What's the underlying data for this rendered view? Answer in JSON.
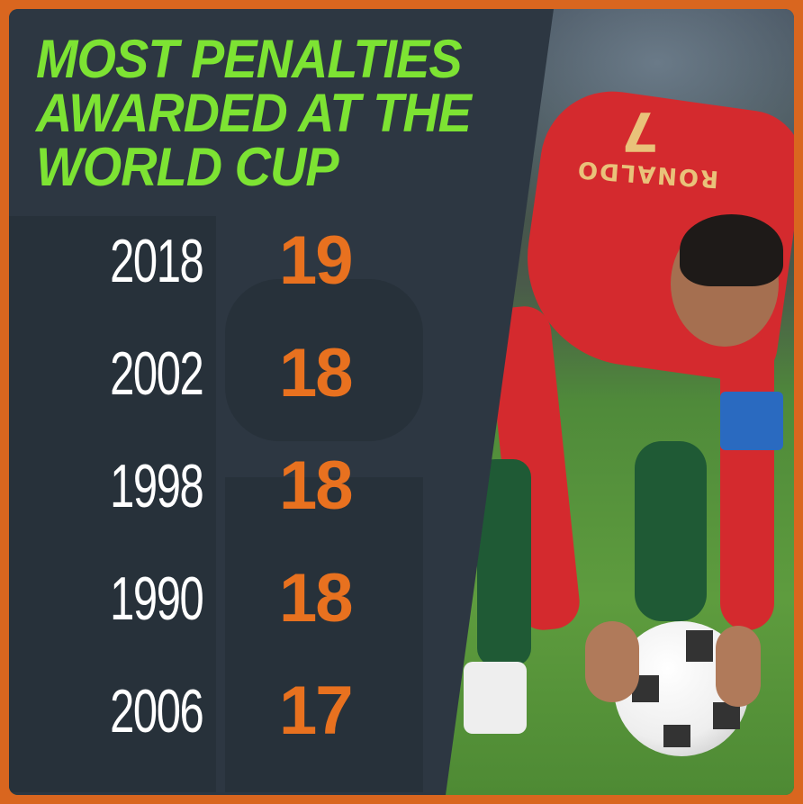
{
  "chart_data": {
    "type": "table",
    "title": "MOST PENALTIES AWARDED AT THE WORLD CUP",
    "title_lines": [
      "MOST PENALTIES",
      "AWARDED AT THE",
      "WORLD CUP"
    ],
    "categories": [
      "2018",
      "2002",
      "1998",
      "1990",
      "2006"
    ],
    "values": [
      19,
      18,
      18,
      18,
      17
    ],
    "colors": {
      "title": "#7de333",
      "year": "#ffffff",
      "value": "#e8711f",
      "panel": "#2d3742",
      "border": "#d9661f"
    }
  },
  "photo": {
    "jersey_name": "RONALDO",
    "jersey_number": "7"
  }
}
